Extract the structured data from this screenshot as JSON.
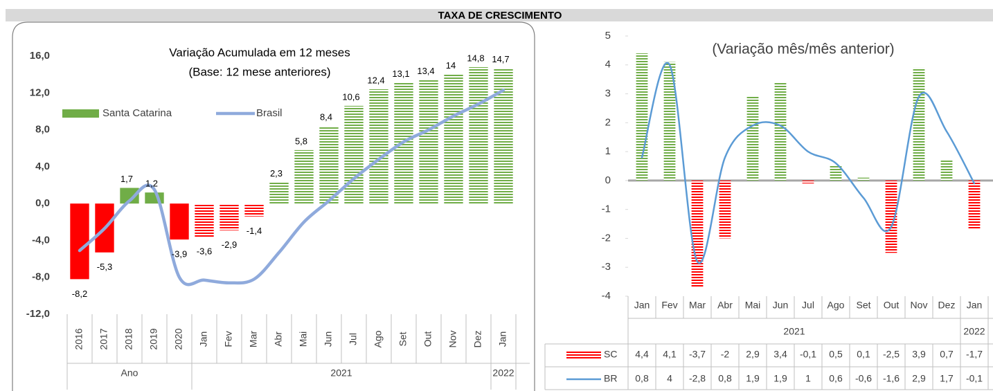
{
  "header": "TAXA DE CRESCIMENTO",
  "chart_data": [
    {
      "type": "bar",
      "title": "Variação Acumulada em 12 meses",
      "subtitle": "(Base: 12 mese anteriores)",
      "categories": [
        "2016",
        "2017",
        "2018",
        "2019",
        "2020",
        "Jan",
        "Fev",
        "Mar",
        "Abr",
        "Mai",
        "Jun",
        "Jul",
        "Ago",
        "Set",
        "Out",
        "Nov",
        "Dez",
        "Jan"
      ],
      "category_groups": [
        "Ano",
        "Ano",
        "Ano",
        "Ano",
        "Ano",
        "2021",
        "2021",
        "2021",
        "2021",
        "2021",
        "2021",
        "2021",
        "2021",
        "2021",
        "2021",
        "2021",
        "2021",
        "2022"
      ],
      "ylim": [
        -12,
        16
      ],
      "yticks": [
        {
          "value": -12,
          "label": "-12,0"
        },
        {
          "value": -8,
          "label": "-8,0"
        },
        {
          "value": -4,
          "label": "-4,0"
        },
        {
          "value": 0,
          "label": "0,0"
        },
        {
          "value": 4,
          "label": "4,0"
        },
        {
          "value": 8,
          "label": "8,0"
        },
        {
          "value": 12,
          "label": "12,0"
        },
        {
          "value": 16,
          "label": "16,0"
        }
      ],
      "legend": "top-left",
      "series": [
        {
          "name": "Santa Catarina",
          "type": "bar",
          "color": "#70ad47",
          "negative_color": "#ff0000",
          "hatched": [
            false,
            false,
            false,
            false,
            false,
            true,
            true,
            true,
            true,
            true,
            true,
            true,
            true,
            true,
            true,
            true,
            true,
            true
          ],
          "values": [
            -8.2,
            -5.3,
            1.7,
            1.2,
            -3.9,
            -3.6,
            -2.9,
            -1.4,
            2.3,
            5.8,
            8.4,
            10.6,
            12.4,
            13.1,
            13.4,
            14,
            14.8,
            14.7
          ],
          "value_labels": [
            "-8,2",
            "-5,3",
            "1,7",
            "1,2",
            "-3,9",
            "-3,6",
            "-2,9",
            "-1,4",
            "2,3",
            "5,8",
            "8,4",
            "10,6",
            "12,4",
            "13,1",
            "13,4",
            "14",
            "14,8",
            "14,7"
          ]
        },
        {
          "name": "Brasil",
          "type": "line",
          "color": "#8faadc",
          "values": [
            -5.1,
            -2.7,
            0.3,
            1.5,
            -8.0,
            -8.3,
            -8.6,
            -8.2,
            -5.3,
            -2.0,
            0.3,
            2.7,
            4.8,
            6.7,
            8.0,
            9.5,
            10.8,
            12.3
          ]
        }
      ]
    },
    {
      "type": "bar",
      "title": "(Variação mês/mês anterior)",
      "categories": [
        "Jan",
        "Fev",
        "Mar",
        "Abr",
        "Mai",
        "Jun",
        "Jul",
        "Ago",
        "Set",
        "Out",
        "Nov",
        "Dez",
        "Jan"
      ],
      "category_groups": [
        "2021",
        "2021",
        "2021",
        "2021",
        "2021",
        "2021",
        "2021",
        "2021",
        "2021",
        "2021",
        "2021",
        "2021",
        "2022"
      ],
      "ylim": [
        -4,
        5
      ],
      "yticks": [
        -4,
        -3,
        -2,
        -1,
        0,
        1,
        2,
        3,
        4,
        5
      ],
      "data_table": true,
      "series": [
        {
          "name": "SC",
          "type": "bar",
          "color": "#70ad47",
          "negative_color": "#ff0000",
          "hatched": true,
          "values": [
            4.4,
            4.1,
            -3.7,
            -2,
            2.9,
            3.4,
            -0.1,
            0.5,
            0.1,
            -2.5,
            3.9,
            0.7,
            -1.7
          ],
          "value_labels": [
            "4,4",
            "4,1",
            "-3,7",
            "-2",
            "2,9",
            "3,4",
            "-0,1",
            "0,5",
            "0,1",
            "-2,5",
            "3,9",
            "0,7",
            "-1,7"
          ]
        },
        {
          "name": "BR",
          "type": "line",
          "color": "#5b9bd5",
          "values": [
            0.8,
            4,
            -2.8,
            0.8,
            1.9,
            1.9,
            1,
            0.6,
            -0.6,
            -1.6,
            2.9,
            1.7,
            -0.1
          ],
          "value_labels": [
            "0,8",
            "4",
            "-2,8",
            "0,8",
            "1,9",
            "1,9",
            "1",
            "0,6",
            "-0,6",
            "-1,6",
            "2,9",
            "1,7",
            "-0,1"
          ]
        }
      ]
    }
  ]
}
